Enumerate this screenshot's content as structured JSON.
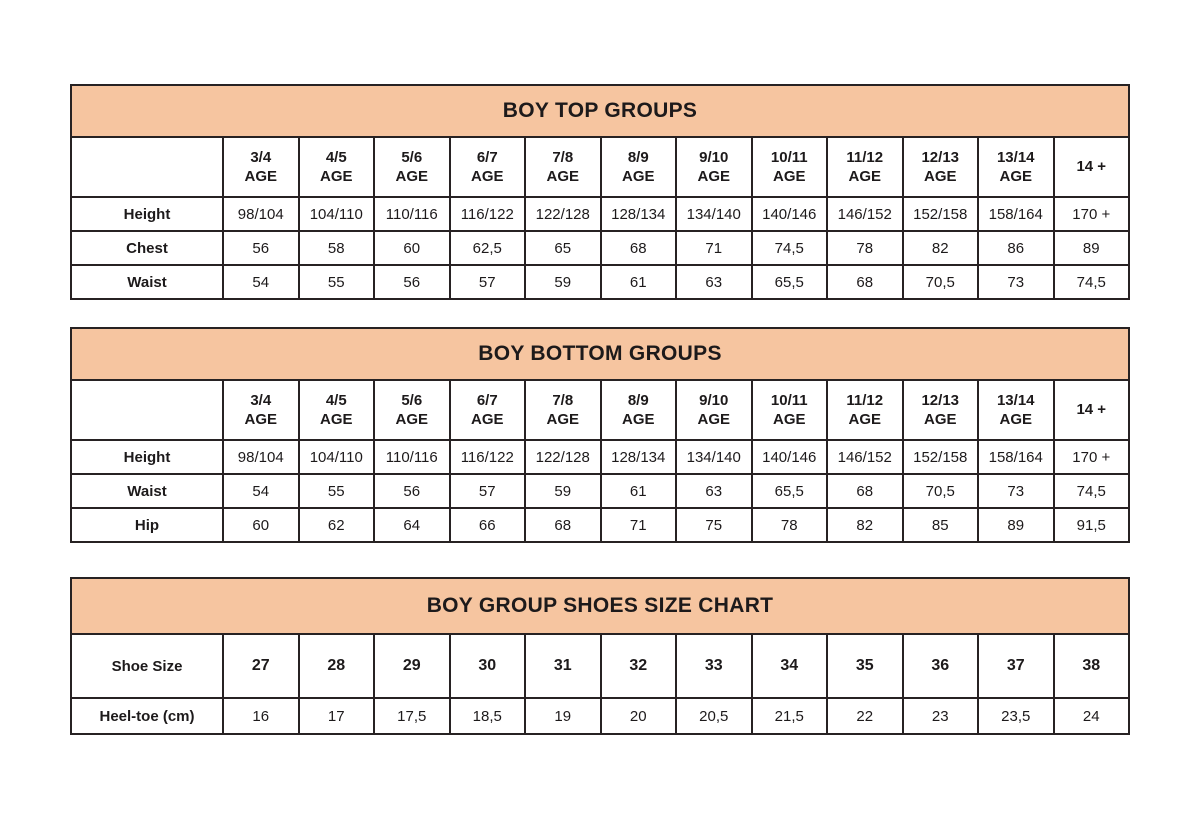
{
  "colors": {
    "banner_background": "#f6c5a0",
    "border": "#272223",
    "text": "#1d1a1b",
    "page_background": "#ffffff"
  },
  "tables": [
    {
      "title": "BOY TOP GROUPS",
      "header": {
        "corner": "",
        "columns": [
          {
            "label": "3/4",
            "sub": "AGE"
          },
          {
            "label": "4/5",
            "sub": "AGE"
          },
          {
            "label": "5/6",
            "sub": "AGE"
          },
          {
            "label": "6/7",
            "sub": "AGE"
          },
          {
            "label": "7/8",
            "sub": "AGE"
          },
          {
            "label": "8/9",
            "sub": "AGE"
          },
          {
            "label": "9/10",
            "sub": "AGE"
          },
          {
            "label": "10/11",
            "sub": "AGE"
          },
          {
            "label": "11/12",
            "sub": "AGE"
          },
          {
            "label": "12/13",
            "sub": "AGE"
          },
          {
            "label": "13/14",
            "sub": "AGE"
          },
          {
            "label": "14 +",
            "sub": ""
          }
        ]
      },
      "rows": [
        {
          "label": "Height",
          "bold": false,
          "values": [
            "98/104",
            "104/110",
            "110/116",
            "116/122",
            "122/128",
            "128/134",
            "134/140",
            "140/146",
            "146/152",
            "152/158",
            "158/164",
            "170 +"
          ]
        },
        {
          "label": "Chest",
          "bold": false,
          "values": [
            "56",
            "58",
            "60",
            "62,5",
            "65",
            "68",
            "71",
            "74,5",
            "78",
            "82",
            "86",
            "89"
          ]
        },
        {
          "label": "Waist",
          "bold": false,
          "values": [
            "54",
            "55",
            "56",
            "57",
            "59",
            "61",
            "63",
            "65,5",
            "68",
            "70,5",
            "73",
            "74,5"
          ]
        }
      ]
    },
    {
      "title": "BOY BOTTOM GROUPS",
      "header": {
        "corner": "",
        "columns": [
          {
            "label": "3/4",
            "sub": "AGE"
          },
          {
            "label": "4/5",
            "sub": "AGE"
          },
          {
            "label": "5/6",
            "sub": "AGE"
          },
          {
            "label": "6/7",
            "sub": "AGE"
          },
          {
            "label": "7/8",
            "sub": "AGE"
          },
          {
            "label": "8/9",
            "sub": "AGE"
          },
          {
            "label": "9/10",
            "sub": "AGE"
          },
          {
            "label": "10/11",
            "sub": "AGE"
          },
          {
            "label": "11/12",
            "sub": "AGE"
          },
          {
            "label": "12/13",
            "sub": "AGE"
          },
          {
            "label": "13/14",
            "sub": "AGE"
          },
          {
            "label": "14 +",
            "sub": ""
          }
        ]
      },
      "rows": [
        {
          "label": "Height",
          "bold": false,
          "values": [
            "98/104",
            "104/110",
            "110/116",
            "116/122",
            "122/128",
            "128/134",
            "134/140",
            "140/146",
            "146/152",
            "152/158",
            "158/164",
            "170 +"
          ]
        },
        {
          "label": "Waist",
          "bold": false,
          "values": [
            "54",
            "55",
            "56",
            "57",
            "59",
            "61",
            "63",
            "65,5",
            "68",
            "70,5",
            "73",
            "74,5"
          ]
        },
        {
          "label": "Hip",
          "bold": false,
          "values": [
            "60",
            "62",
            "64",
            "66",
            "68",
            "71",
            "75",
            "78",
            "82",
            "85",
            "89",
            "91,5"
          ]
        }
      ]
    },
    {
      "title": "BOY GROUP SHOES SIZE CHART",
      "header": null,
      "rows": [
        {
          "label": "Shoe Size",
          "bold": true,
          "values": [
            "27",
            "28",
            "29",
            "30",
            "31",
            "32",
            "33",
            "34",
            "35",
            "36",
            "37",
            "38"
          ]
        },
        {
          "label": "Heel-toe (cm)",
          "bold": false,
          "values": [
            "16",
            "17",
            "17,5",
            "18,5",
            "19",
            "20",
            "20,5",
            "21,5",
            "22",
            "23",
            "23,5",
            "24"
          ]
        }
      ]
    }
  ]
}
